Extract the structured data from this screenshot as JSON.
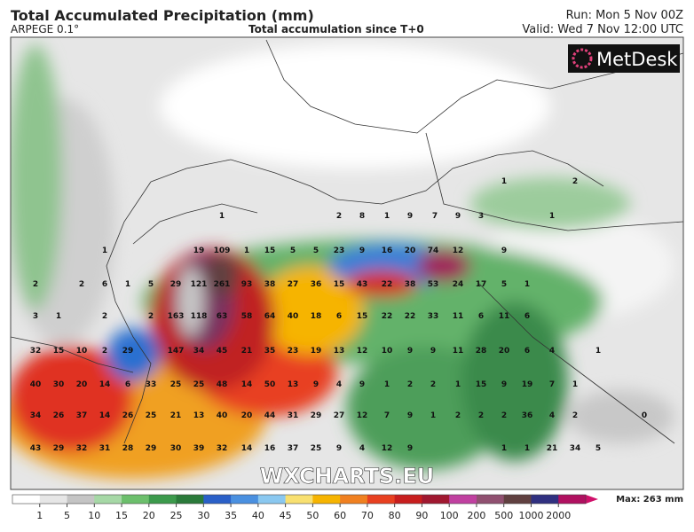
{
  "header": {
    "title": "Total Accumulated Precipitation (mm)",
    "model": "ARPEGE 0.1°",
    "subtitle": "Total accumulation since T+0",
    "run": "Run: Mon 5 Nov 00Z",
    "valid": "Valid: Wed 7 Nov 12:00 UTC"
  },
  "logo": "MetDesk",
  "watermark": "WXCHARTS.EU",
  "map_rows": [
    [
      1,
      2
    ],
    [
      1,
      2,
      8,
      1,
      9,
      7,
      9,
      3,
      1
    ],
    [
      1,
      19,
      109,
      1,
      15,
      5,
      5,
      23,
      9,
      16,
      20,
      74,
      12,
      9
    ],
    [
      2,
      2,
      6,
      1,
      5,
      29,
      121,
      261,
      93,
      38,
      27,
      36,
      15,
      43,
      22,
      38,
      53,
      24,
      17,
      5,
      1
    ],
    [
      3,
      1,
      2,
      2,
      163,
      118,
      63,
      58,
      64,
      40,
      18,
      6,
      15,
      22,
      22,
      33,
      11,
      6,
      11,
      6
    ],
    [
      32,
      15,
      10,
      2,
      29,
      147,
      34,
      45,
      21,
      35,
      23,
      19,
      13,
      12,
      10,
      9,
      9,
      11,
      28,
      20,
      6,
      4,
      1
    ],
    [
      40,
      30,
      20,
      14,
      6,
      33,
      25,
      25,
      48,
      14,
      50,
      13,
      9,
      4,
      9,
      1,
      2,
      2,
      1,
      15,
      9,
      19,
      7,
      1
    ],
    [
      34,
      26,
      37,
      14,
      26,
      25,
      21,
      13,
      40,
      20,
      44,
      31,
      29,
      27,
      12,
      7,
      9,
      1,
      2,
      2,
      2,
      36,
      4,
      2,
      0
    ],
    [
      43,
      29,
      32,
      31,
      28,
      29,
      30,
      39,
      32,
      14,
      16,
      37,
      25,
      9,
      4,
      12,
      9,
      1,
      1,
      21,
      34,
      5
    ]
  ],
  "legend": {
    "ticks": [
      1,
      5,
      10,
      15,
      20,
      25,
      30,
      35,
      40,
      45,
      50,
      60,
      70,
      80,
      90,
      100,
      200,
      500,
      1000,
      2000
    ],
    "max_label": "Max: 263 mm"
  }
}
